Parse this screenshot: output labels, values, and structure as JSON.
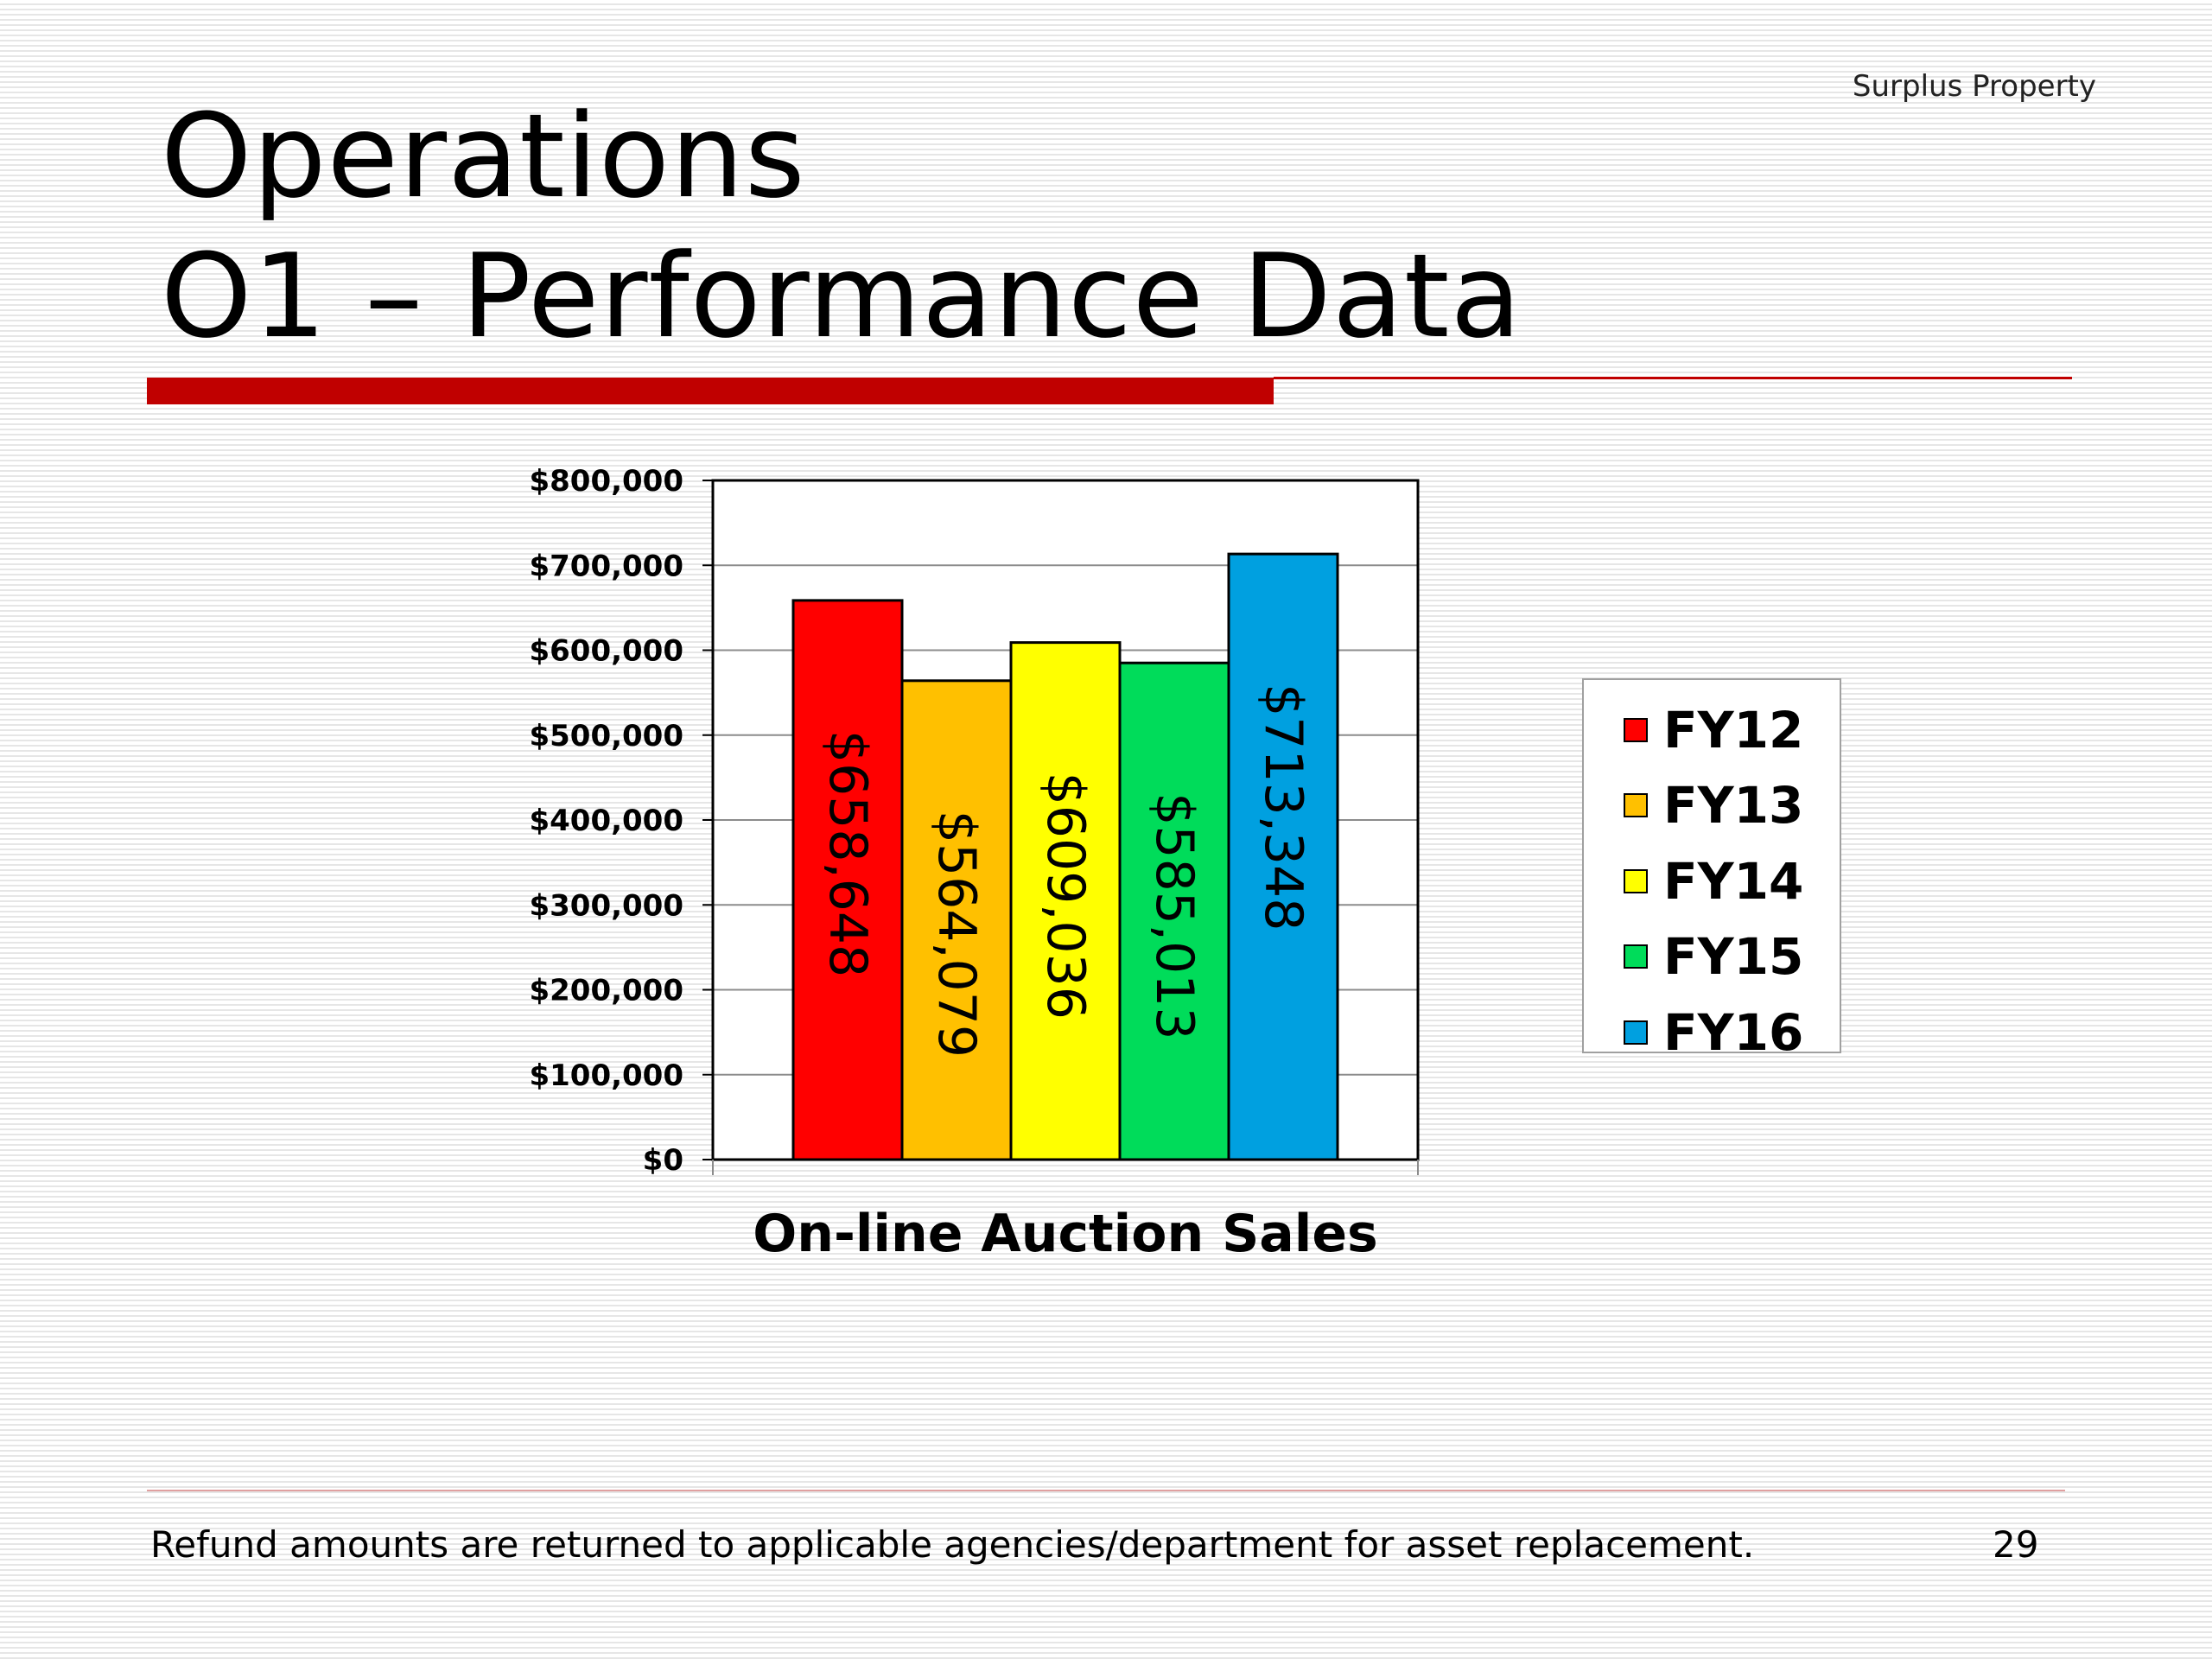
{
  "header_tag": "Surplus Property",
  "title": {
    "line1": "Operations",
    "line2": "O1 – Performance Data"
  },
  "chart_data": {
    "type": "bar",
    "categories": [
      "On-line Auction Sales"
    ],
    "series": [
      {
        "name": "FY12",
        "values": [
          658648
        ],
        "label": "$658,648",
        "color": "#ff0000"
      },
      {
        "name": "FY13",
        "values": [
          564079
        ],
        "label": "$564,079",
        "color": "#ffc000"
      },
      {
        "name": "FY14",
        "values": [
          609036
        ],
        "label": "$609,036",
        "color": "#ffff00"
      },
      {
        "name": "FY15",
        "values": [
          585013
        ],
        "label": "$585,013",
        "color": "#00dc5a"
      },
      {
        "name": "FY16",
        "values": [
          713348
        ],
        "label": "$713,348",
        "color": "#00a0e0"
      }
    ],
    "ylim": [
      0,
      800000
    ],
    "yticks": [
      0,
      100000,
      200000,
      300000,
      400000,
      500000,
      600000,
      700000,
      800000
    ],
    "ytick_labels": [
      "$0",
      "$100,000",
      "$200,000",
      "$300,000",
      "$400,000",
      "$500,000",
      "$600,000",
      "$700,000",
      "$800,000"
    ],
    "xlabel": "On-line Auction Sales",
    "grid": true,
    "legend_position": "right"
  },
  "footer": {
    "note": "Refund amounts are returned to applicable agencies/department for asset replacement.",
    "page_number": "29"
  }
}
